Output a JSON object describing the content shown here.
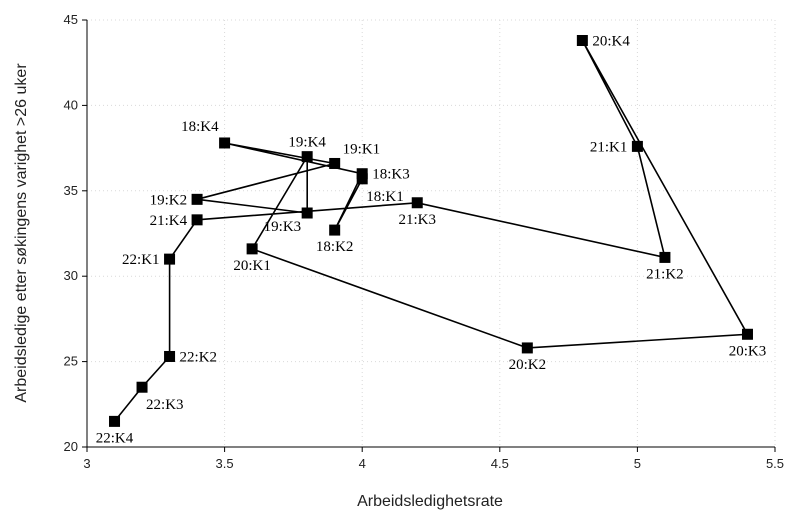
{
  "chart_data": {
    "type": "line",
    "xlabel": "Arbeidsledighetsrate",
    "ylabel": "Arbeidsledige etter søkingens varighet >26 uker",
    "xlim": [
      3,
      5.5
    ],
    "ylim": [
      20,
      45
    ],
    "x_ticks": [
      3,
      3.5,
      4,
      4.5,
      5,
      5.5
    ],
    "y_ticks": [
      20,
      25,
      30,
      35,
      40,
      45
    ],
    "x_tick_labels": [
      "3",
      "3.5",
      "4",
      "4.5",
      "5",
      "5.5"
    ],
    "y_tick_labels": [
      "20",
      "25",
      "30",
      "35",
      "40",
      "45"
    ],
    "grid": true,
    "marker": "square",
    "points": [
      {
        "label": "18:K1",
        "x": 4.0,
        "y": 35.7,
        "label_pos": "below-right"
      },
      {
        "label": "18:K2",
        "x": 3.9,
        "y": 32.7,
        "label_pos": "below"
      },
      {
        "label": "18:K3",
        "x": 4.0,
        "y": 36.0,
        "label_pos": "right"
      },
      {
        "label": "18:K4",
        "x": 3.5,
        "y": 37.8,
        "label_pos": "above-left"
      },
      {
        "label": "19:K1",
        "x": 3.9,
        "y": 36.6,
        "label_pos": "above-right"
      },
      {
        "label": "19:K2",
        "x": 3.4,
        "y": 34.5,
        "label_pos": "left"
      },
      {
        "label": "19:K3",
        "x": 3.8,
        "y": 33.7,
        "label_pos": "below-left"
      },
      {
        "label": "19:K4",
        "x": 3.8,
        "y": 37.0,
        "label_pos": "above"
      },
      {
        "label": "20:K1",
        "x": 3.6,
        "y": 31.6,
        "label_pos": "below"
      },
      {
        "label": "20:K2",
        "x": 4.6,
        "y": 25.8,
        "label_pos": "below"
      },
      {
        "label": "20:K3",
        "x": 5.4,
        "y": 26.6,
        "label_pos": "below"
      },
      {
        "label": "20:K4",
        "x": 4.8,
        "y": 43.8,
        "label_pos": "right"
      },
      {
        "label": "21:K1",
        "x": 5.0,
        "y": 37.6,
        "label_pos": "left"
      },
      {
        "label": "21:K2",
        "x": 5.1,
        "y": 31.1,
        "label_pos": "below"
      },
      {
        "label": "21:K3",
        "x": 4.2,
        "y": 34.3,
        "label_pos": "below"
      },
      {
        "label": "21:K4",
        "x": 3.4,
        "y": 33.3,
        "label_pos": "left"
      },
      {
        "label": "22:K1",
        "x": 3.3,
        "y": 31.0,
        "label_pos": "left"
      },
      {
        "label": "22:K2",
        "x": 3.3,
        "y": 25.3,
        "label_pos": "right"
      },
      {
        "label": "22:K3",
        "x": 3.2,
        "y": 23.5,
        "label_pos": "below-right"
      },
      {
        "label": "22:K4",
        "x": 3.1,
        "y": 21.5,
        "label_pos": "below"
      }
    ]
  }
}
